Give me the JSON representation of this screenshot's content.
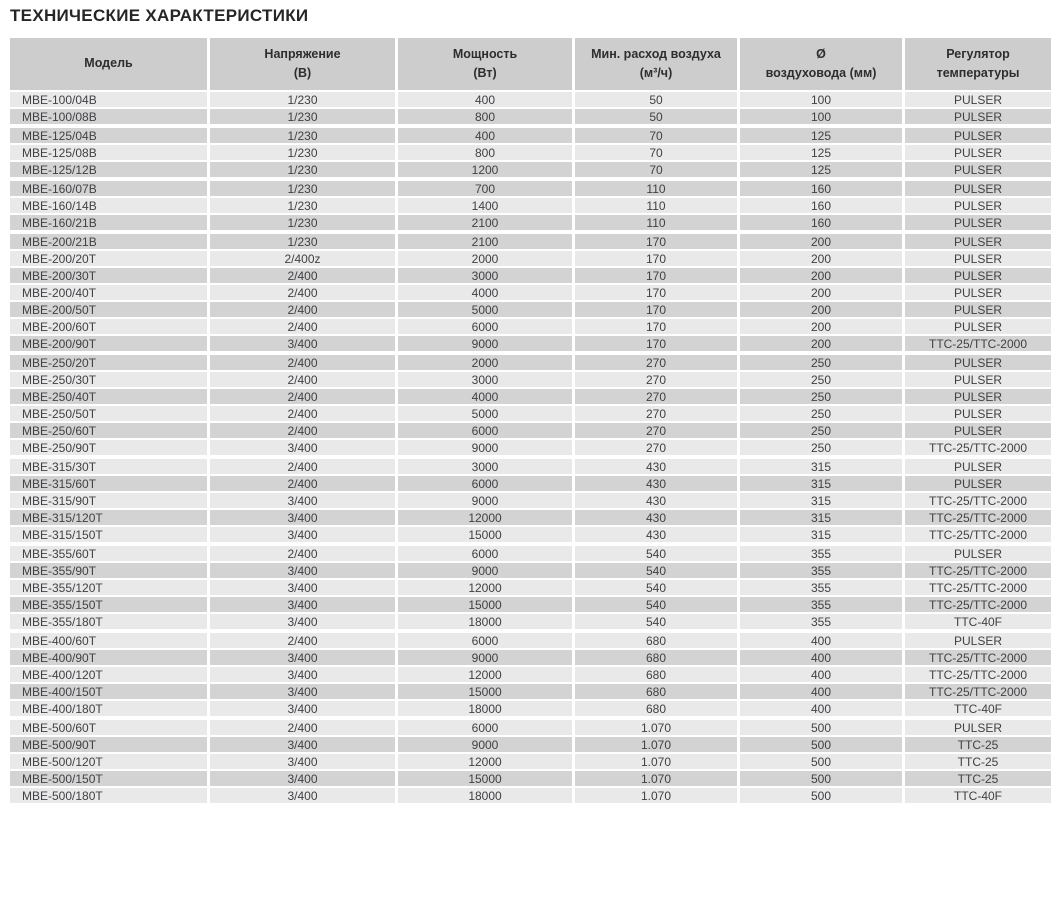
{
  "page": {
    "title": "ТЕХНИЧЕСКИЕ ХАРАКТЕРИСТИКИ"
  },
  "colors": {
    "header_bg": "#cdcdcd",
    "header_text": "#2e2e30",
    "row_light": "#e9e9ea",
    "row_dark": "#d3d3d4",
    "cell_text": "#414144",
    "title_text": "#262626",
    "separator": "#ffffff"
  },
  "table": {
    "columns": [
      {
        "id": "model",
        "line1": "Модель",
        "line2": ""
      },
      {
        "id": "voltage",
        "line1": "Напряжение",
        "line2": "(В)"
      },
      {
        "id": "power",
        "line1": "Мощность",
        "line2": "(Вт)"
      },
      {
        "id": "airflow",
        "line1": "Мин. расход воздуха",
        "line2": "(м³/ч)"
      },
      {
        "id": "diameter",
        "line1": "Ø",
        "line2": "воздуховода (мм)"
      },
      {
        "id": "regulator",
        "line1": "Регулятор",
        "line2": "температуры"
      }
    ],
    "groups": [
      {
        "rows": [
          [
            "MBE-100/04B",
            "1/230",
            "400",
            "50",
            "100",
            "PULSER"
          ],
          [
            "MBE-100/08B",
            "1/230",
            "800",
            "50",
            "100",
            "PULSER"
          ]
        ]
      },
      {
        "rows": [
          [
            "MBE-125/04B",
            "1/230",
            "400",
            "70",
            "125",
            "PULSER"
          ],
          [
            "MBE-125/08B",
            "1/230",
            "800",
            "70",
            "125",
            "PULSER"
          ],
          [
            "MBE-125/12B",
            "1/230",
            "1200",
            "70",
            "125",
            "PULSER"
          ]
        ]
      },
      {
        "rows": [
          [
            "MBE-160/07B",
            "1/230",
            "700",
            "110",
            "160",
            "PULSER"
          ],
          [
            "MBE-160/14B",
            "1/230",
            "1400",
            "110",
            "160",
            "PULSER"
          ],
          [
            "MBE-160/21B",
            "1/230",
            "2100",
            "110",
            "160",
            "PULSER"
          ]
        ]
      },
      {
        "rows": [
          [
            "MBE-200/21B",
            "1/230",
            "2100",
            "170",
            "200",
            "PULSER"
          ],
          [
            "MBE-200/20T",
            "2/400z",
            "2000",
            "170",
            "200",
            "PULSER"
          ],
          [
            "MBE-200/30T",
            "2/400",
            "3000",
            "170",
            "200",
            "PULSER"
          ],
          [
            "MBE-200/40T",
            "2/400",
            "4000",
            "170",
            "200",
            "PULSER"
          ],
          [
            "MBE-200/50T",
            "2/400",
            "5000",
            "170",
            "200",
            "PULSER"
          ],
          [
            "MBE-200/60T",
            "2/400",
            "6000",
            "170",
            "200",
            "PULSER"
          ],
          [
            "MBE-200/90T",
            "3/400",
            "9000",
            "170",
            "200",
            "TTC-25/TTC-2000"
          ]
        ]
      },
      {
        "rows": [
          [
            "MBE-250/20T",
            "2/400",
            "2000",
            "270",
            "250",
            "PULSER"
          ],
          [
            "MBE-250/30T",
            "2/400",
            "3000",
            "270",
            "250",
            "PULSER"
          ],
          [
            "MBE-250/40T",
            "2/400",
            "4000",
            "270",
            "250",
            "PULSER"
          ],
          [
            "MBE-250/50T",
            "2/400",
            "5000",
            "270",
            "250",
            "PULSER"
          ],
          [
            "MBE-250/60T",
            "2/400",
            "6000",
            "270",
            "250",
            "PULSER"
          ],
          [
            "MBE-250/90T",
            "3/400",
            "9000",
            "270",
            "250",
            "TTC-25/TTC-2000"
          ]
        ]
      },
      {
        "rows": [
          [
            "MBE-315/30T",
            "2/400",
            "3000",
            "430",
            "315",
            "PULSER"
          ],
          [
            "MBE-315/60T",
            "2/400",
            "6000",
            "430",
            "315",
            "PULSER"
          ],
          [
            "MBE-315/90T",
            "3/400",
            "9000",
            "430",
            "315",
            "TTC-25/TTC-2000"
          ],
          [
            "MBE-315/120T",
            "3/400",
            "12000",
            "430",
            "315",
            "TTC-25/TTC-2000"
          ],
          [
            "MBE-315/150T",
            "3/400",
            "15000",
            "430",
            "315",
            "TTC-25/TTC-2000"
          ]
        ]
      },
      {
        "rows": [
          [
            "MBE-355/60T",
            "2/400",
            "6000",
            "540",
            "355",
            "PULSER"
          ],
          [
            "MBE-355/90T",
            "3/400",
            "9000",
            "540",
            "355",
            "TTC-25/TTC-2000"
          ],
          [
            "MBE-355/120T",
            "3/400",
            "12000",
            "540",
            "355",
            "TTC-25/TTC-2000"
          ],
          [
            "MBE-355/150T",
            "3/400",
            "15000",
            "540",
            "355",
            "TTC-25/TTC-2000"
          ],
          [
            "MBE-355/180T",
            "3/400",
            "18000",
            "540",
            "355",
            "TTC-40F"
          ]
        ]
      },
      {
        "rows": [
          [
            "MBE-400/60T",
            "2/400",
            "6000",
            "680",
            "400",
            "PULSER"
          ],
          [
            "MBE-400/90T",
            "3/400",
            "9000",
            "680",
            "400",
            "TTC-25/TTC-2000"
          ],
          [
            "MBE-400/120T",
            "3/400",
            "12000",
            "680",
            "400",
            "TTC-25/TTC-2000"
          ],
          [
            "MBE-400/150T",
            "3/400",
            "15000",
            "680",
            "400",
            "TTC-25/TTC-2000"
          ],
          [
            "MBE-400/180T",
            "3/400",
            "18000",
            "680",
            "400",
            "TTC-40F"
          ]
        ]
      },
      {
        "rows": [
          [
            "MBE-500/60T",
            "2/400",
            "6000",
            "1.070",
            "500",
            "PULSER"
          ],
          [
            "MBE-500/90T",
            "3/400",
            "9000",
            "1.070",
            "500",
            "TTC-25"
          ],
          [
            "MBE-500/120T",
            "3/400",
            "12000",
            "1.070",
            "500",
            "TTC-25"
          ],
          [
            "MBE-500/150T",
            "3/400",
            "15000",
            "1.070",
            "500",
            "TTC-25"
          ],
          [
            "MBE-500/180T",
            "3/400",
            "18000",
            "1.070",
            "500",
            "TTC-40F"
          ]
        ]
      }
    ]
  }
}
